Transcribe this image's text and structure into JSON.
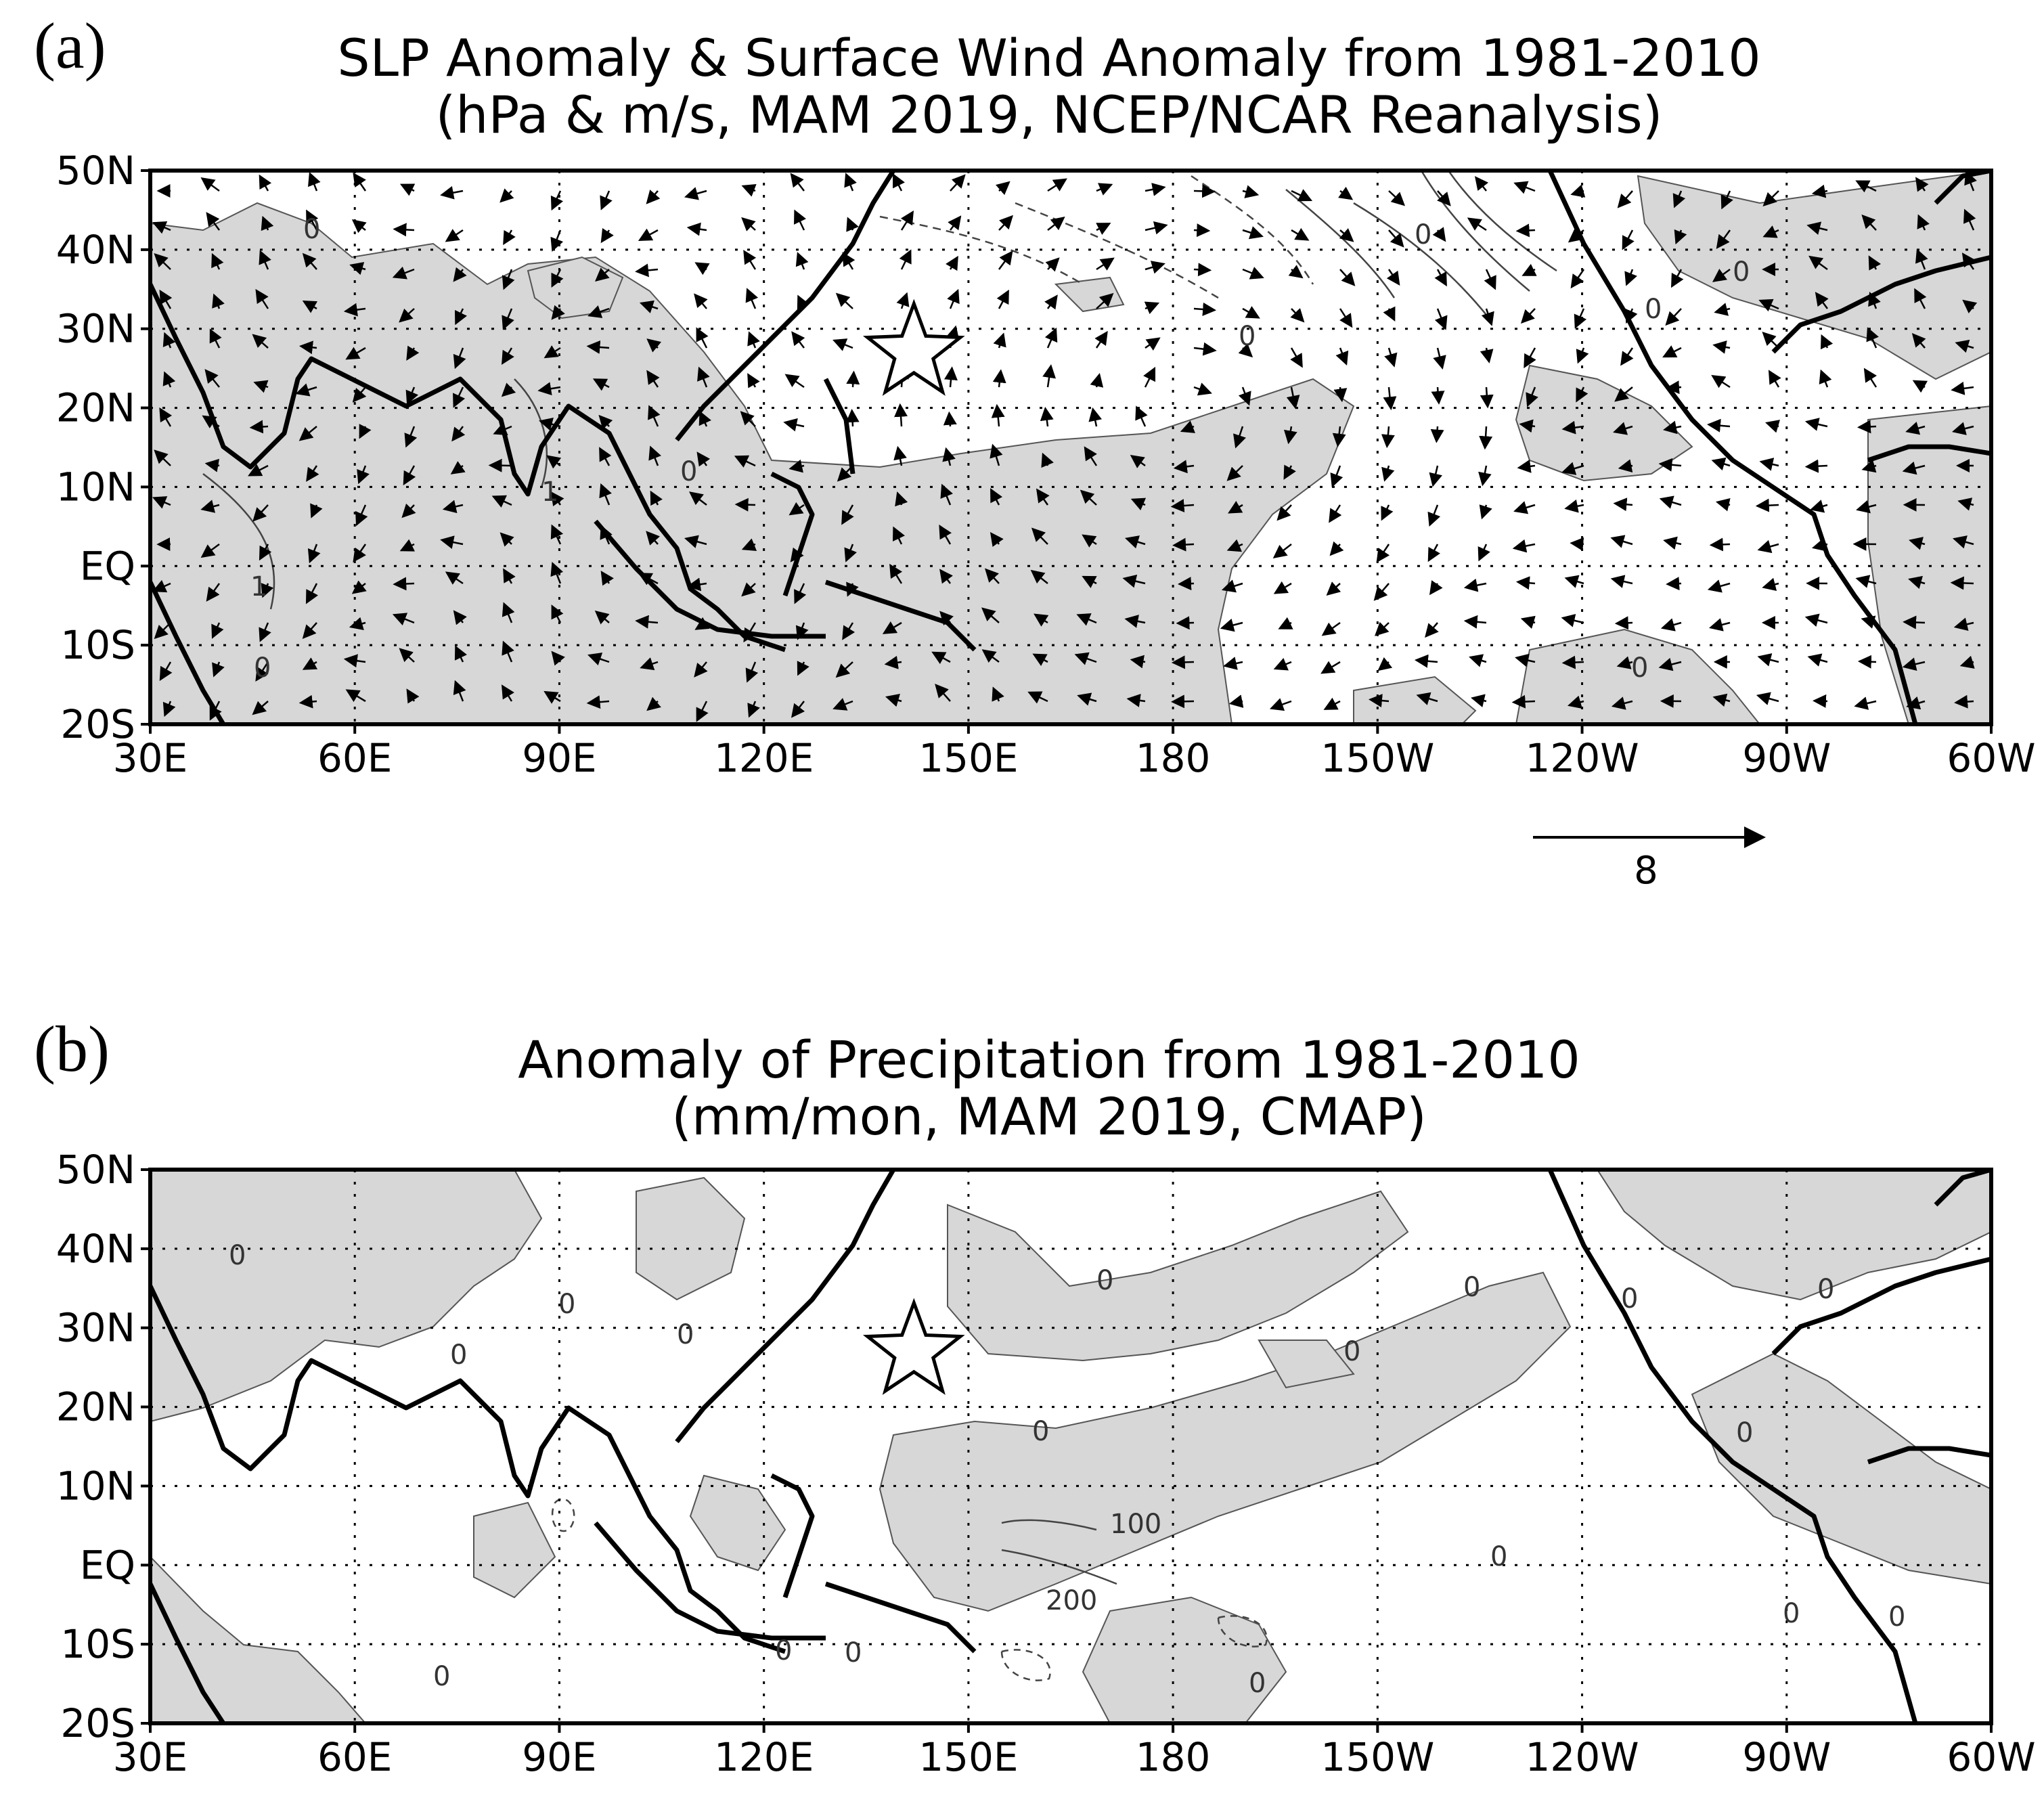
{
  "panels": [
    {
      "label": "(a)",
      "title_line1": "SLP Anomaly & Surface Wind Anomaly from 1981-2010",
      "title_line2": "(hPa & m/s, MAM 2019, NCEP/NCAR Reanalysis)",
      "contour_labels": [
        "0",
        "1",
        "0",
        "1",
        "0",
        "0",
        "0",
        "0",
        "0",
        "0"
      ],
      "reference_vector": "8"
    },
    {
      "label": "(b)",
      "title_line1": "Anomaly of Precipitation from 1981-2010",
      "title_line2": "(mm/mon, MAM 2019, CMAP)",
      "contour_labels": [
        "0",
        "0",
        "0",
        "0",
        "0",
        "0",
        "0",
        "0",
        "0",
        "0",
        "0",
        "100",
        "200",
        "0",
        "0",
        "0",
        "0",
        "0",
        "0",
        "0"
      ]
    }
  ],
  "lat_ticks": [
    "50N",
    "40N",
    "30N",
    "20N",
    "10N",
    "EQ",
    "10S",
    "20S"
  ],
  "lon_ticks": [
    "30E",
    "60E",
    "90E",
    "120E",
    "150E",
    "180",
    "150W",
    "120W",
    "90W",
    "60W"
  ],
  "marker": {
    "name": "star",
    "lon": 142,
    "lat": 27
  },
  "colors": {
    "shading": "#d7d7d7",
    "coast": "#000000",
    "grid": "#000000"
  }
}
